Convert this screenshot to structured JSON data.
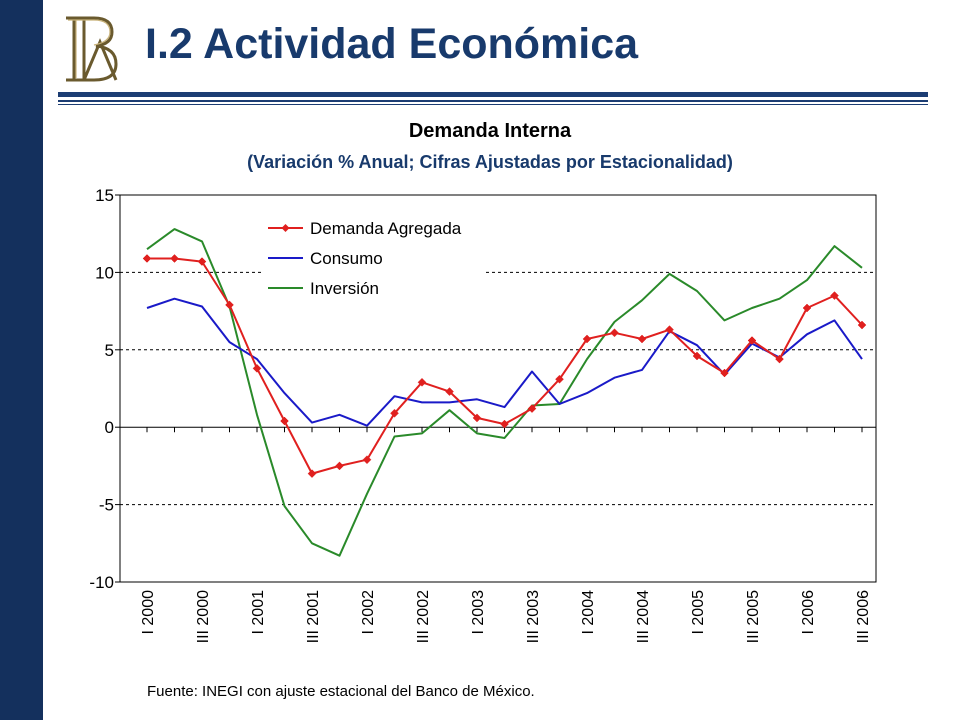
{
  "slide": {
    "title": "I.2 Actividad Económica",
    "source": "Fuente: INEGI con ajuste estacional del Banco de México.",
    "logo_text": "BM"
  },
  "colors": {
    "left_bar": "#14305d",
    "title": "#183a6c",
    "demanda": "#e0201f",
    "consumo": "#1a1ac8",
    "inversion": "#2a8a2a"
  },
  "chart_data": {
    "type": "line",
    "title": "Demanda Interna",
    "subtitle": "(Variación % Anual; Cifras Ajustadas por Estacionalidad)",
    "xlabel": "",
    "ylabel": "",
    "ylim": [
      -10,
      15
    ],
    "yticks": [
      "15",
      "10",
      "5",
      "0",
      "-5",
      "-10"
    ],
    "ytick_values": [
      15,
      10,
      5,
      0,
      -5,
      -10
    ],
    "x": [
      "I 2000",
      "II 2000",
      "III 2000",
      "IV 2000",
      "I 2001",
      "II 2001",
      "III 2001",
      "IV 2001",
      "I 2002",
      "II 2002",
      "III 2002",
      "IV 2002",
      "I 2003",
      "II 2003",
      "III 2003",
      "IV 2003",
      "I 2004",
      "II 2004",
      "III 2004",
      "IV 2004",
      "I 2005",
      "II 2005",
      "III 2005",
      "IV 2005",
      "I 2006",
      "II 2006",
      "III 2006"
    ],
    "xtick_labels": [
      {
        "label": "I 2000",
        "index": 0
      },
      {
        "label": "III 2000",
        "index": 2
      },
      {
        "label": "I 2001",
        "index": 4
      },
      {
        "label": "III 2001",
        "index": 6
      },
      {
        "label": "I 2002",
        "index": 8
      },
      {
        "label": "III 2002",
        "index": 10
      },
      {
        "label": "I 2003",
        "index": 12
      },
      {
        "label": "III 2003",
        "index": 14
      },
      {
        "label": "I 2004",
        "index": 16
      },
      {
        "label": "III 2004",
        "index": 18
      },
      {
        "label": "I 2005",
        "index": 20
      },
      {
        "label": "III 2005",
        "index": 22
      },
      {
        "label": "I 2006",
        "index": 24
      },
      {
        "label": "III 2006",
        "index": 26
      }
    ],
    "gridlines": "dashed at 10, 5, -5",
    "legend_position": "top-left",
    "series": [
      {
        "name": "Demanda Agregada",
        "color": "#e0201f",
        "markers": true,
        "values": [
          10.9,
          10.9,
          10.7,
          7.9,
          3.8,
          0.4,
          -3.0,
          -2.5,
          -2.1,
          0.9,
          2.9,
          2.3,
          0.6,
          0.2,
          1.2,
          3.1,
          5.7,
          6.1,
          5.7,
          6.3,
          4.6,
          3.5,
          5.6,
          4.4,
          7.7,
          8.5,
          6.6
        ]
      },
      {
        "name": "Consumo",
        "color": "#1a1ac8",
        "markers": false,
        "values": [
          7.7,
          8.3,
          7.8,
          5.5,
          4.4,
          2.2,
          0.3,
          0.8,
          0.1,
          2.0,
          1.6,
          1.6,
          1.8,
          1.3,
          3.6,
          1.5,
          2.2,
          3.2,
          3.7,
          6.2,
          5.3,
          3.4,
          5.4,
          4.5,
          6.0,
          6.9,
          4.4
        ]
      },
      {
        "name": "Inversión",
        "color": "#2a8a2a",
        "markers": false,
        "values": [
          11.5,
          12.8,
          12.0,
          7.8,
          0.8,
          -5.1,
          -7.5,
          -8.3,
          -4.3,
          -0.6,
          -0.4,
          1.1,
          -0.4,
          -0.7,
          1.4,
          1.5,
          4.4,
          6.8,
          8.2,
          9.9,
          8.8,
          6.9,
          7.7,
          8.3,
          9.5,
          11.7,
          10.3
        ]
      }
    ]
  }
}
